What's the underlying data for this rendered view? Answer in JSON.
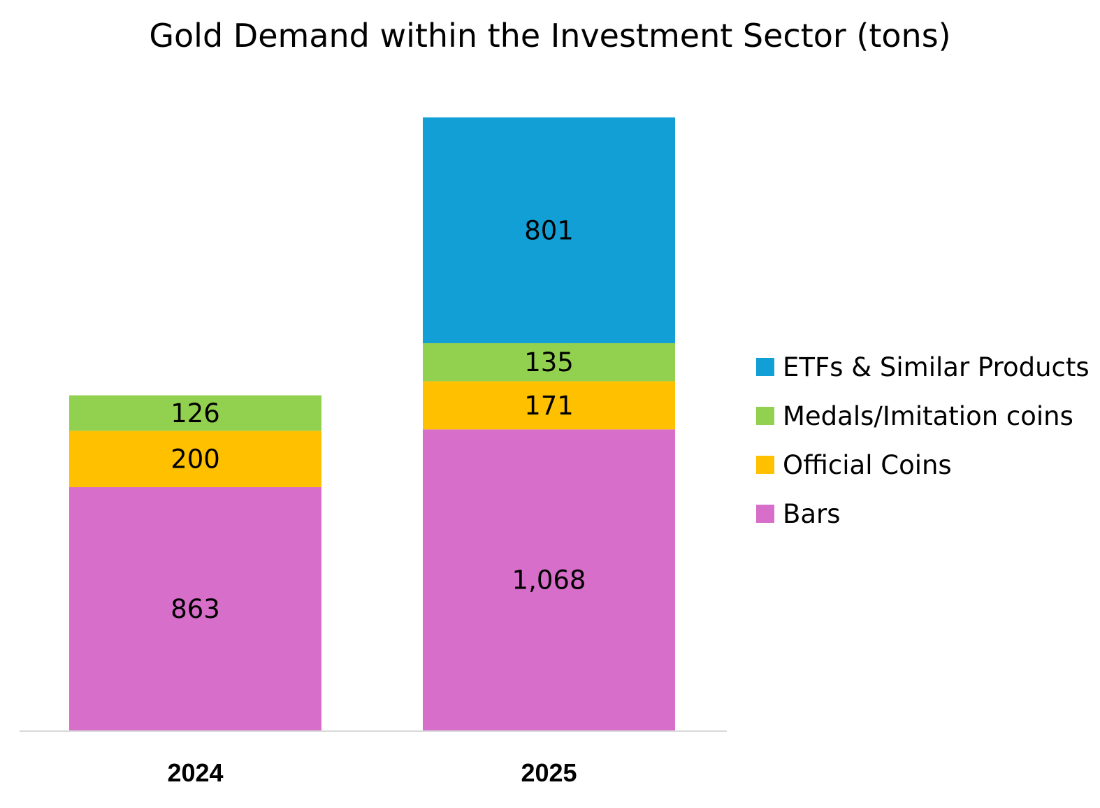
{
  "chart_data": {
    "type": "bar",
    "stacked": true,
    "title": "Gold Demand within the Investment Sector (tons)",
    "categories": [
      "2024",
      "2025"
    ],
    "series": [
      {
        "name": "Bars",
        "color": "#d76ec9",
        "values": [
          863,
          1068
        ],
        "labels": [
          "863",
          "1,068"
        ]
      },
      {
        "name": "Official Coins",
        "color": "#ffc000",
        "values": [
          200,
          171
        ],
        "labels": [
          "200",
          "171"
        ]
      },
      {
        "name": "Medals/Imitation coins",
        "color": "#92d050",
        "values": [
          126,
          135
        ],
        "labels": [
          "126",
          "135"
        ]
      },
      {
        "name": "ETFs & Similar Products",
        "color": "#119fd6",
        "values": [
          0,
          801
        ],
        "labels": [
          "",
          "801"
        ]
      }
    ],
    "legend": {
      "position": "right",
      "order": [
        "ETFs & Similar Products",
        "Medals/Imitation coins",
        "Official Coins",
        "Bars"
      ]
    },
    "xlabel": "",
    "ylabel": "",
    "ylim": [
      0,
      2200
    ],
    "grid": false
  }
}
